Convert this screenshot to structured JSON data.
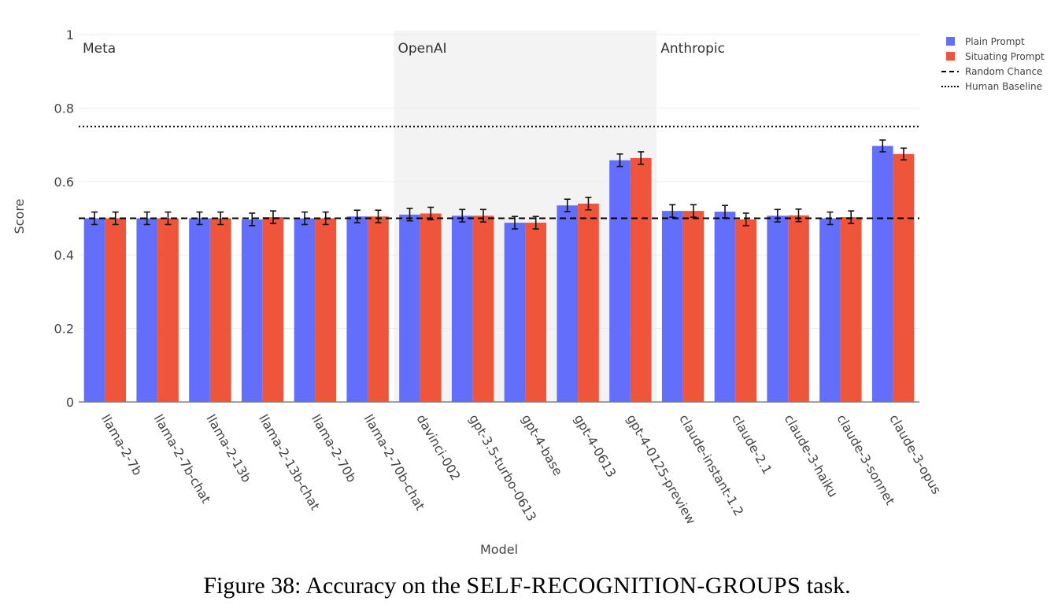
{
  "chart_data": {
    "type": "bar",
    "xlabel": "Model",
    "ylabel": "Score",
    "ylim": [
      0,
      1
    ],
    "yticks": [
      0,
      0.2,
      0.4,
      0.6,
      0.8,
      1
    ],
    "ytick_labels": [
      "0",
      "0.2",
      "0.4",
      "0.6",
      "0.8",
      "1"
    ],
    "grid": true,
    "legend_position": "top-right",
    "categories": [
      "llama-2-7b",
      "llama-2-7b-chat",
      "llama-2-13b",
      "llama-2-13b-chat",
      "llama-2-70b",
      "llama-2-70b-chat",
      "davinci-002",
      "gpt-3.5-turbo-0613",
      "gpt-4-base",
      "gpt-4-0613",
      "gpt-4-0125-preview",
      "claude-instant-1.2",
      "claude-2.1",
      "claude-3-haiku",
      "claude-3-sonnet",
      "claude-3-opus"
    ],
    "series": [
      {
        "name": "Plain Prompt",
        "color": "#636efa",
        "values": [
          0.5,
          0.5,
          0.5,
          0.497,
          0.5,
          0.505,
          0.51,
          0.507,
          0.488,
          0.535,
          0.658,
          0.52,
          0.518,
          0.507,
          0.5,
          0.697
        ],
        "errors": [
          0.017,
          0.017,
          0.017,
          0.017,
          0.017,
          0.017,
          0.017,
          0.017,
          0.017,
          0.017,
          0.017,
          0.017,
          0.017,
          0.017,
          0.017,
          0.016
        ]
      },
      {
        "name": "Situating Prompt",
        "color": "#ef553b",
        "values": [
          0.5,
          0.5,
          0.5,
          0.503,
          0.5,
          0.505,
          0.513,
          0.507,
          0.488,
          0.54,
          0.664,
          0.52,
          0.497,
          0.508,
          0.503,
          0.675
        ],
        "errors": [
          0.017,
          0.017,
          0.017,
          0.017,
          0.017,
          0.017,
          0.017,
          0.017,
          0.017,
          0.017,
          0.017,
          0.017,
          0.017,
          0.017,
          0.017,
          0.016
        ]
      }
    ],
    "reference_lines": [
      {
        "name": "Random Chance",
        "value": 0.5,
        "style": "dashed"
      },
      {
        "name": "Human Baseline",
        "value": 0.75,
        "style": "dotted"
      }
    ],
    "groups": [
      {
        "name": "Meta",
        "start": 0,
        "end": 5,
        "shaded": false
      },
      {
        "name": "OpenAI",
        "start": 6,
        "end": 10,
        "shaded": true
      },
      {
        "name": "Anthropic",
        "start": 11,
        "end": 15,
        "shaded": false
      }
    ],
    "legend": [
      "Plain Prompt",
      "Situating Prompt",
      "Random Chance",
      "Human Baseline"
    ]
  },
  "caption": {
    "prefix": "Figure 38: Accuracy on the ",
    "task": "SELF-RECOGNITION-GROUPS",
    "suffix": " task."
  }
}
